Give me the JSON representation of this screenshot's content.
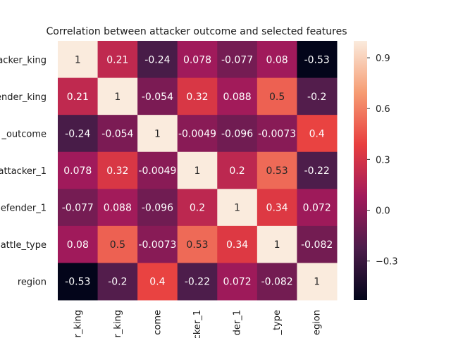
{
  "chart_data": {
    "type": "heatmap",
    "title": "Correlation between attacker outcome and selected features",
    "row_labels_visible": [
      "acker_king",
      "ender_king",
      "_outcome",
      "attacker_1",
      "efender_1",
      "attle_type",
      "region"
    ],
    "col_labels_visible": [
      "r_king",
      "r_king",
      "come",
      "cker_1",
      "der_1",
      "_type",
      "egion"
    ],
    "cell_labels": [
      [
        "1",
        "0.21",
        "-0.24",
        "0.078",
        "-0.077",
        "0.08",
        "-0.53"
      ],
      [
        "0.21",
        "1",
        "-0.054",
        "0.32",
        "0.088",
        "0.5",
        "-0.2"
      ],
      [
        "-0.24",
        "-0.054",
        "1",
        "-0.0049",
        "-0.096",
        "-0.0073",
        "0.4"
      ],
      [
        "0.078",
        "0.32",
        "-0.0049",
        "1",
        "0.2",
        "0.53",
        "-0.22"
      ],
      [
        "-0.077",
        "0.088",
        "-0.096",
        "0.2",
        "1",
        "0.34",
        "0.072"
      ],
      [
        "0.08",
        "0.5",
        "-0.0073",
        "0.53",
        "0.34",
        "1",
        "-0.082"
      ],
      [
        "-0.53",
        "-0.2",
        "0.4",
        "-0.22",
        "0.072",
        "-0.082",
        "1"
      ]
    ],
    "values": [
      [
        1,
        0.21,
        -0.24,
        0.078,
        -0.077,
        0.08,
        -0.53
      ],
      [
        0.21,
        1,
        -0.054,
        0.32,
        0.088,
        0.5,
        -0.2
      ],
      [
        -0.24,
        -0.054,
        1,
        -0.0049,
        -0.096,
        -0.0073,
        0.4
      ],
      [
        0.078,
        0.32,
        -0.0049,
        1,
        0.2,
        0.53,
        -0.22
      ],
      [
        -0.077,
        0.088,
        -0.096,
        0.2,
        1,
        0.34,
        0.072
      ],
      [
        0.08,
        0.5,
        -0.0073,
        0.53,
        0.34,
        1,
        -0.082
      ],
      [
        -0.53,
        -0.2,
        0.4,
        -0.22,
        0.072,
        -0.082,
        1
      ]
    ],
    "colorbar": {
      "range": [
        -0.53,
        1
      ],
      "ticks": [
        -0.3,
        0.0,
        0.3,
        0.6,
        0.9
      ],
      "tick_labels": [
        "−0.3",
        "0.0",
        "0.3",
        "0.6",
        "0.9"
      ]
    },
    "colormap": "rocket",
    "colors": [
      "#03051a",
      "#4c1d4b",
      "#a11a5b",
      "#e83f3f",
      "#f69c73",
      "#faebdd"
    ],
    "grid": false
  }
}
